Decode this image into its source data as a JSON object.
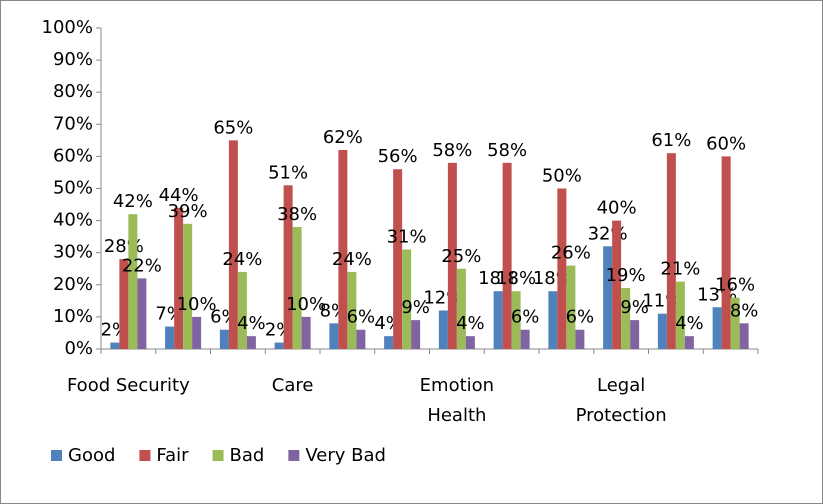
{
  "chart_data": {
    "type": "bar",
    "categories": [
      "Food Security",
      null,
      null,
      "Care",
      null,
      null,
      "Emotion Health",
      null,
      null,
      "Legal Protection",
      null,
      null
    ],
    "series": [
      {
        "name": "Good",
        "color": "#4f81bd",
        "values": [
          2,
          7,
          6,
          2,
          8,
          4,
          12,
          18,
          18,
          32,
          11,
          13
        ],
        "value_labels": [
          "2%",
          "7%",
          "6%",
          "2%",
          "8%",
          "4%",
          "12%",
          "18%",
          "18%",
          "32%",
          "11%",
          "13%"
        ]
      },
      {
        "name": "Fair",
        "color": "#c0504d",
        "values": [
          28,
          44,
          65,
          51,
          62,
          56,
          58,
          58,
          50,
          40,
          61,
          60
        ],
        "value_labels": [
          "28%",
          "44%",
          "65%",
          "51%",
          "62%",
          "56%",
          "58%",
          "58%",
          "50%",
          "40%",
          "61%",
          "60%"
        ]
      },
      {
        "name": "Bad",
        "color": "#9bbb59",
        "values": [
          42,
          39,
          24,
          38,
          24,
          31,
          25,
          18,
          26,
          19,
          21,
          16
        ],
        "value_labels": [
          "42%",
          "39%",
          "24%",
          "38%",
          "24%",
          "31%",
          "25%",
          "18%",
          "26%",
          "19%",
          "21%",
          "16%"
        ]
      },
      {
        "name": "Very Bad",
        "color": "#8064a2",
        "values": [
          22,
          10,
          4,
          10,
          6,
          9,
          4,
          6,
          6,
          9,
          4,
          8
        ],
        "value_labels": [
          "22%",
          "10%",
          "4%",
          "10%",
          "6%",
          "9%",
          "4%",
          "6%",
          "6%",
          "9%",
          "4%",
          "8%"
        ]
      }
    ],
    "ylim": [
      0,
      100
    ],
    "yticks": [
      {
        "value": 0,
        "label": "0%"
      },
      {
        "value": 10,
        "label": "10%"
      },
      {
        "value": 20,
        "label": "20%"
      },
      {
        "value": 30,
        "label": "30%"
      },
      {
        "value": 40,
        "label": "40%"
      },
      {
        "value": 50,
        "label": "50%"
      },
      {
        "value": 60,
        "label": "60%"
      },
      {
        "value": 70,
        "label": "70%"
      },
      {
        "value": 80,
        "label": "80%"
      },
      {
        "value": 90,
        "label": "90%"
      },
      {
        "value": 100,
        "label": "100%"
      }
    ],
    "grid": false
  }
}
